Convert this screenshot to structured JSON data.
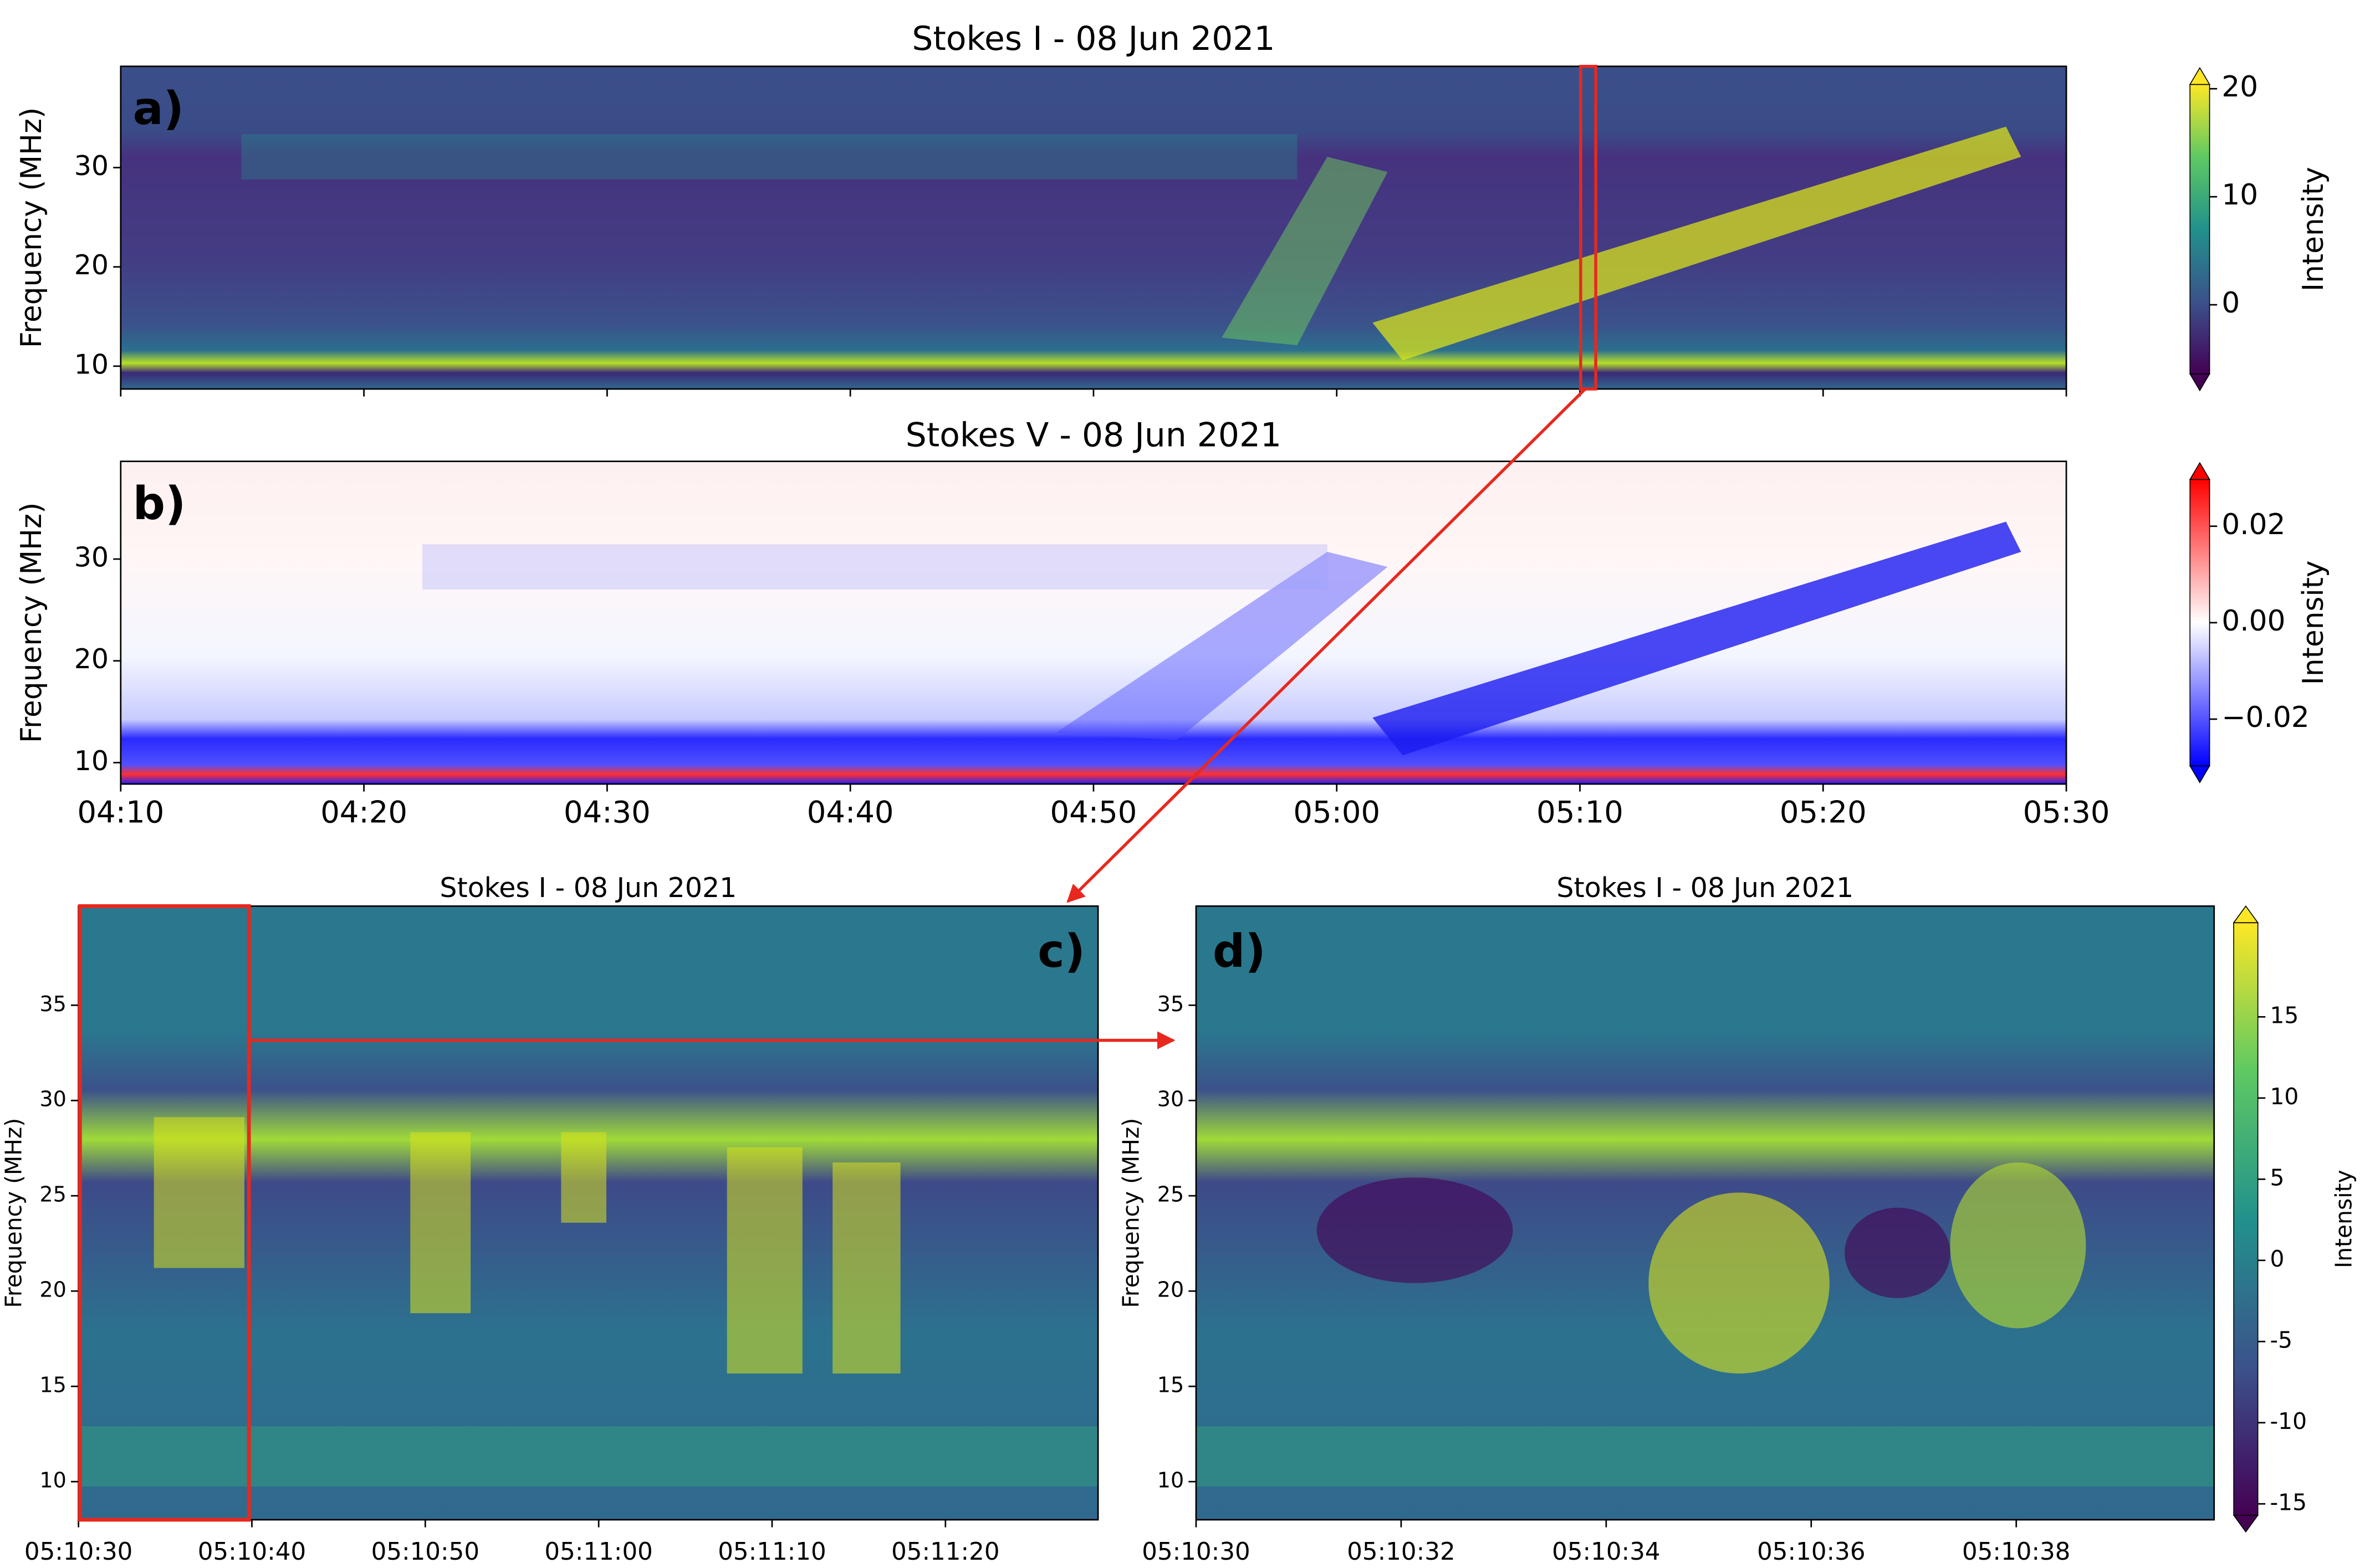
{
  "chart_data": [
    {
      "type": "heatmap",
      "panel_label": "a)",
      "title": "Stokes I - 08 Jun 2021",
      "ylabel": "Frequency (MHz)",
      "xlim": [
        0,
        80
      ],
      "ylim": [
        7.7,
        40.2
      ],
      "yticks": [
        10,
        20,
        30
      ],
      "colorbar": {
        "label": "Intensity",
        "lim": [
          -6.4,
          20.4
        ],
        "ticks": [
          0,
          10,
          20
        ],
        "colormap": "viridis",
        "extend": "both"
      }
    },
    {
      "type": "heatmap",
      "panel_label": "b)",
      "title": "Stokes V - 08 Jun 2021",
      "ylabel": "Frequency (MHz)",
      "xlim": [
        0,
        80
      ],
      "ylim": [
        7.9,
        39.6
      ],
      "yticks": [
        10,
        20,
        30
      ],
      "xticks": [
        {
          "value": 0,
          "label": "04:10"
        },
        {
          "value": 10,
          "label": "04:20"
        },
        {
          "value": 20,
          "label": "04:30"
        },
        {
          "value": 30,
          "label": "04:40"
        },
        {
          "value": 40,
          "label": "04:50"
        },
        {
          "value": 50,
          "label": "05:00"
        },
        {
          "value": 60,
          "label": "05:10"
        },
        {
          "value": 70,
          "label": "05:20"
        },
        {
          "value": 80,
          "label": "05:30"
        }
      ],
      "colorbar": {
        "label": "Intensity",
        "lim": [
          -0.0297,
          0.0297
        ],
        "ticks": [
          {
            "value": 0.02,
            "label": "0.02"
          },
          {
            "value": 0,
            "label": "0.00"
          },
          {
            "value": -0.02,
            "label": "−0.02"
          }
        ],
        "colormap": "bwr",
        "extend": "both"
      }
    },
    {
      "type": "heatmap",
      "panel_label": "c)",
      "title": "Stokes I - 08 Jun 2021",
      "ylabel": "Frequency (MHz)",
      "xlim": [
        0,
        58.8
      ],
      "ylim": [
        8,
        40.2
      ],
      "yticks": [
        10,
        15,
        20,
        25,
        30,
        35
      ],
      "xticks": [
        {
          "value": 0,
          "label": "05:10:30"
        },
        {
          "value": 10,
          "label": "05:10:40"
        },
        {
          "value": 20,
          "label": "05:10:50"
        },
        {
          "value": 30,
          "label": "05:11:00"
        },
        {
          "value": 40,
          "label": "05:11:10"
        },
        {
          "value": 50,
          "label": "05:11:20"
        }
      ]
    },
    {
      "type": "heatmap",
      "panel_label": "d)",
      "title": "Stokes I - 08 Jun 2021",
      "ylabel": "Frequency (MHz)",
      "xlim": [
        0,
        9.93
      ],
      "ylim": [
        8,
        40.2
      ],
      "yticks": [
        10,
        15,
        20,
        25,
        30,
        35
      ],
      "xticks": [
        {
          "value": 0,
          "label": "05:10:30"
        },
        {
          "value": 2,
          "label": "05:10:32"
        },
        {
          "value": 4,
          "label": "05:10:34"
        },
        {
          "value": 6,
          "label": "05:10:36"
        },
        {
          "value": 8,
          "label": "05:10:38"
        }
      ],
      "colorbar": {
        "label": "Intensity",
        "lim": [
          -15.7,
          20.8
        ],
        "ticks": [
          -15,
          -10,
          -5,
          0,
          5,
          10,
          15
        ],
        "colormap": "viridis",
        "extend": "both"
      }
    }
  ]
}
